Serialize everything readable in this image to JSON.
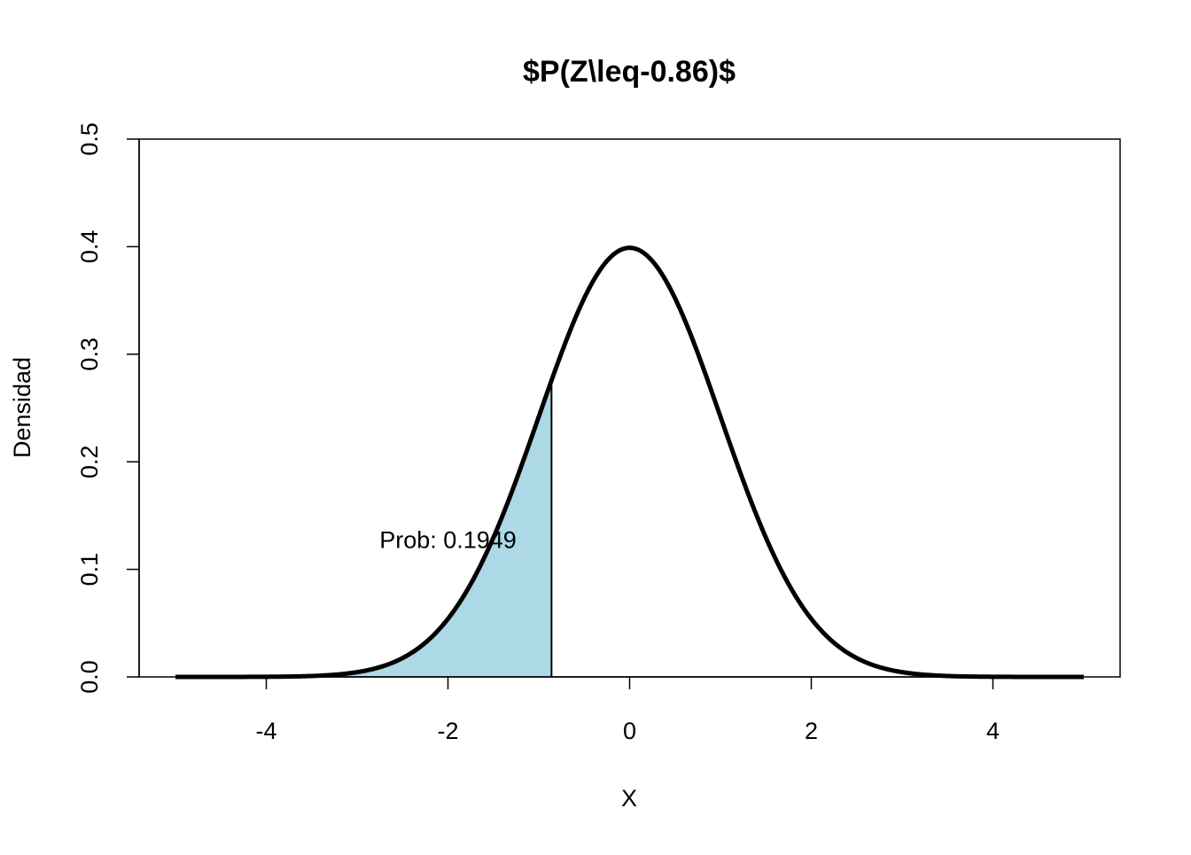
{
  "chart_data": {
    "type": "area",
    "title": "$P(Z\\leq-0.86)$",
    "xlabel": "X",
    "ylabel": "Densidad",
    "xlim": [
      -5.4,
      5.4
    ],
    "ylim": [
      0,
      0.5
    ],
    "x_ticks": [
      -4,
      -2,
      0,
      2,
      4
    ],
    "x_tick_labels": [
      "-4",
      "-2",
      "0",
      "2",
      "4"
    ],
    "y_ticks": [
      0.0,
      0.1,
      0.2,
      0.3,
      0.4,
      0.5
    ],
    "y_tick_labels": [
      "0.0",
      "0.1",
      "0.2",
      "0.3",
      "0.4",
      "0.5"
    ],
    "grid": false,
    "series": [
      {
        "distribution": "normal",
        "mean": 0,
        "sd": 1,
        "x_range": [
          -5,
          5
        ],
        "x": [
          -5,
          -4.5,
          -4,
          -3.5,
          -3,
          -2.5,
          -2,
          -1.5,
          -1,
          -0.86,
          -0.5,
          0,
          0.5,
          1,
          1.5,
          2,
          2.5,
          3,
          3.5,
          4,
          4.5,
          5
        ],
        "y": [
          1.5e-06,
          1.6e-05,
          0.000134,
          0.000873,
          0.004432,
          0.017528,
          0.053991,
          0.129518,
          0.241971,
          0.275426,
          0.352065,
          0.398942,
          0.352065,
          0.241971,
          0.129518,
          0.053991,
          0.017528,
          0.004432,
          0.000873,
          0.000134,
          1.6e-05,
          1.5e-06
        ],
        "color": "#000000"
      }
    ],
    "shaded_region": {
      "from": -5,
      "to": -0.86,
      "color": "#ADD8E6"
    },
    "annotation": {
      "text": "Prob: 0.1949",
      "x": -2,
      "y": 0.128
    }
  }
}
